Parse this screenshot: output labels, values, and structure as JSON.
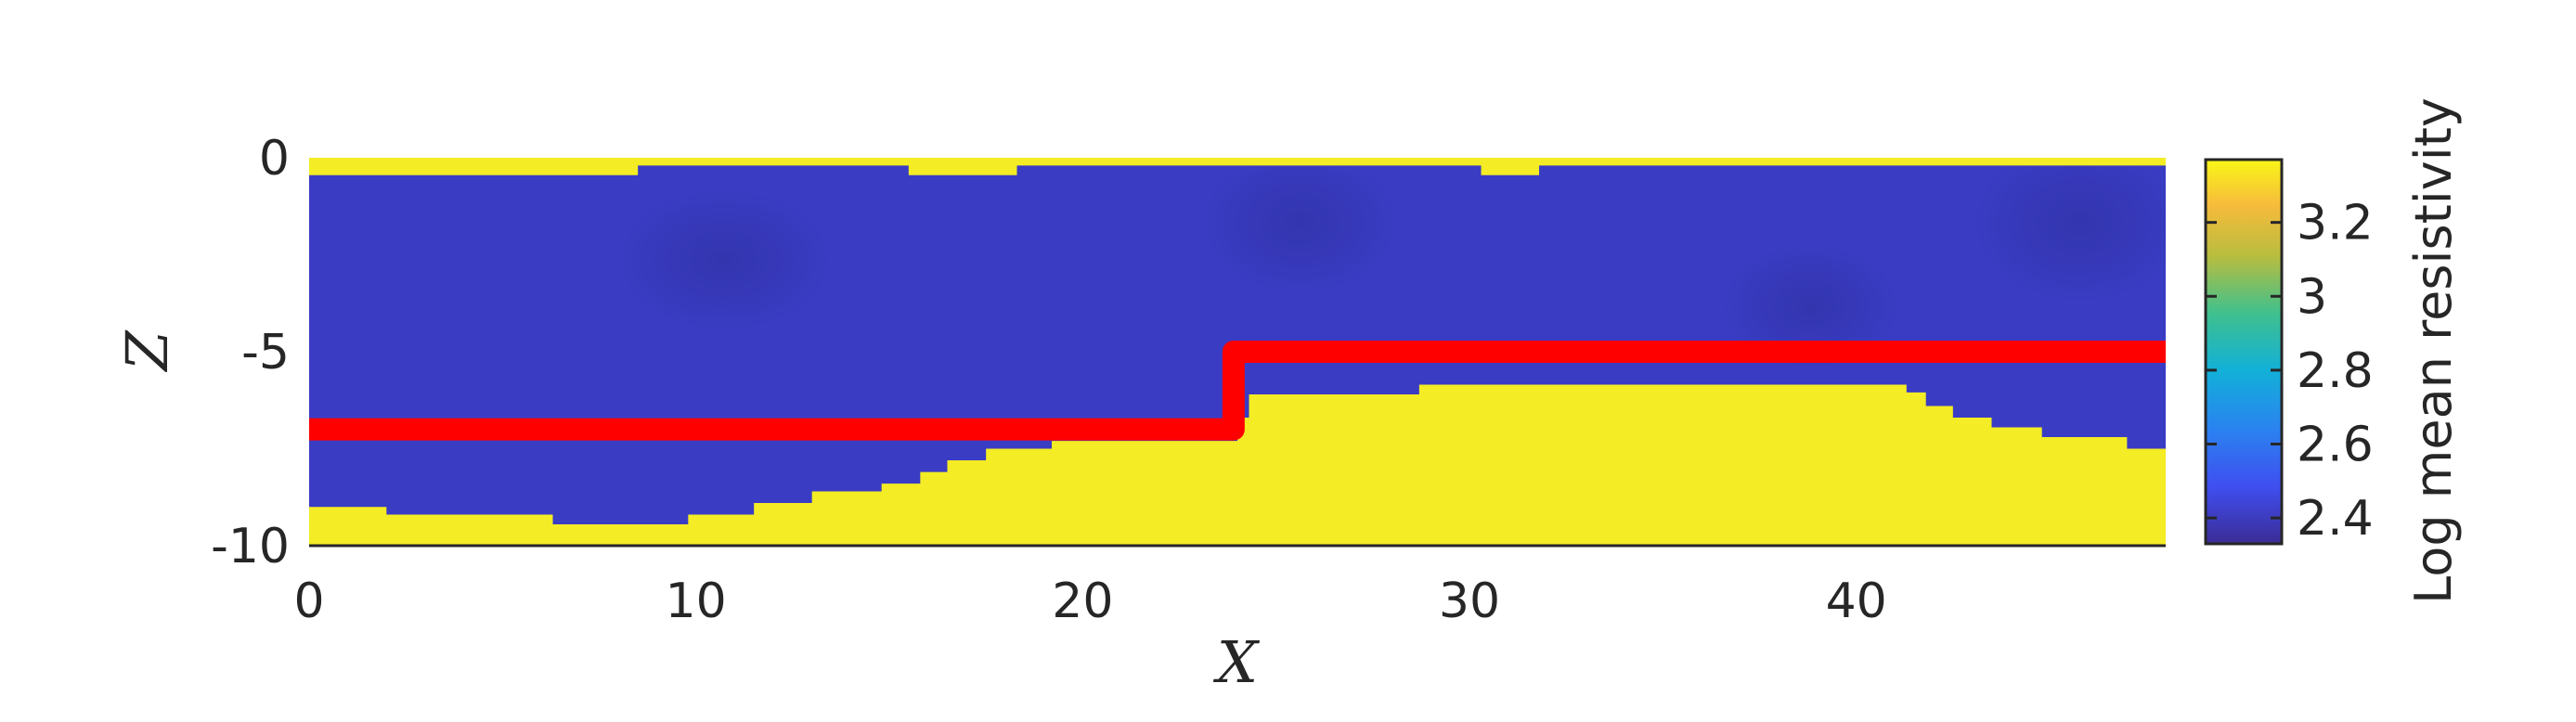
{
  "chart_data": {
    "type": "heatmap",
    "title": "",
    "xlabel": "X",
    "ylabel": "Z",
    "xlim": [
      0,
      48
    ],
    "ylim": [
      -10,
      0
    ],
    "x_ticks": [
      "0",
      "10",
      "20",
      "30",
      "40"
    ],
    "x_tick_values": [
      0,
      10,
      20,
      30,
      40
    ],
    "y_ticks": [
      "0",
      "-5",
      "-10"
    ],
    "y_tick_values": [
      0,
      -5,
      -10
    ],
    "colorbar": {
      "label": "Log mean resistivity",
      "range": [
        2.33,
        3.37
      ],
      "ticks": [
        "3.2",
        "3",
        "2.8",
        "2.6",
        "2.4"
      ],
      "tick_values": [
        3.2,
        3.0,
        2.8,
        2.6,
        2.4
      ],
      "colormap": "parula"
    },
    "background_value": 2.36,
    "top_layer": {
      "value": 3.36,
      "bottom_boundary": [
        {
          "x": 0,
          "z": -0.45
        },
        {
          "x": 8.5,
          "z": -0.2
        },
        {
          "x": 15.5,
          "z": -0.45
        },
        {
          "x": 18.3,
          "z": -0.2
        },
        {
          "x": 30.3,
          "z": -0.45
        },
        {
          "x": 31.8,
          "z": -0.2
        },
        {
          "x": 48,
          "z": -0.2
        }
      ]
    },
    "bottom_layer": {
      "value": 3.36,
      "top_boundary": [
        {
          "x": 0,
          "z": -9.0
        },
        {
          "x": 2,
          "z": -9.2
        },
        {
          "x": 6.3,
          "z": -9.45
        },
        {
          "x": 9.8,
          "z": -9.2
        },
        {
          "x": 11.5,
          "z": -8.9
        },
        {
          "x": 13.0,
          "z": -8.6
        },
        {
          "x": 14.8,
          "z": -8.4
        },
        {
          "x": 15.8,
          "z": -8.1
        },
        {
          "x": 16.5,
          "z": -7.8
        },
        {
          "x": 17.5,
          "z": -7.5
        },
        {
          "x": 19.2,
          "z": -7.3
        },
        {
          "x": 24.0,
          "z": -6.7
        },
        {
          "x": 24.3,
          "z": -6.1
        },
        {
          "x": 28.7,
          "z": -5.85
        },
        {
          "x": 41.3,
          "z": -6.05
        },
        {
          "x": 41.8,
          "z": -6.4
        },
        {
          "x": 42.5,
          "z": -6.7
        },
        {
          "x": 43.5,
          "z": -6.95
        },
        {
          "x": 44.8,
          "z": -7.2
        },
        {
          "x": 47.0,
          "z": -7.5
        },
        {
          "x": 48,
          "z": -7.5
        }
      ]
    },
    "true_boundary": {
      "color": "#ff0000",
      "points": [
        {
          "x": 0,
          "z": -7.0
        },
        {
          "x": 23.9,
          "z": -7.0
        },
        {
          "x": 23.9,
          "z": -5.0
        },
        {
          "x": 48,
          "z": -5.0
        }
      ]
    }
  },
  "colors": {
    "low": "#3a3cc4",
    "high": "#f4ec24",
    "boundary": "#ff0000"
  }
}
